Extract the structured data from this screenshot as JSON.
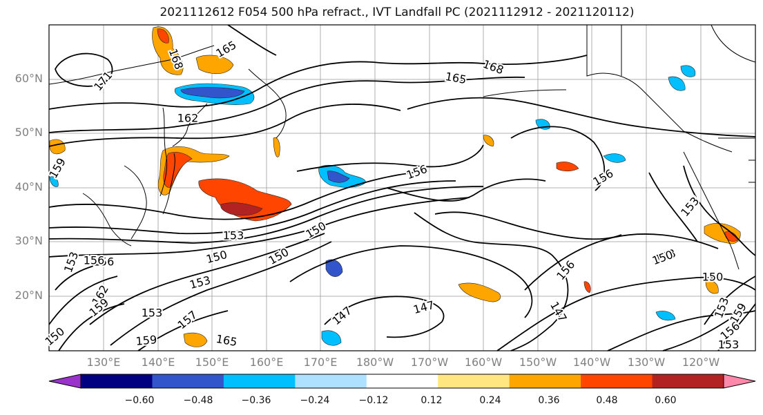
{
  "title": "2021112612 F054 500 hPa refract., IVT Landfall PC (2021112912 - 2021120112)",
  "lat_labels": [
    "60°N",
    "50°N",
    "40°N",
    "30°N",
    "20°N"
  ],
  "lon_labels": [
    "130°E",
    "140°E",
    "150°E",
    "160°E",
    "170°E",
    "180°W",
    "170°W",
    "160°W",
    "150°W",
    "140°W",
    "130°W",
    "120°W"
  ],
  "colorbar": {
    "ticks": [
      "−0.60",
      "−0.48",
      "−0.36",
      "−0.24",
      "−0.12",
      "0.12",
      "0.24",
      "0.36",
      "0.48",
      "0.60"
    ],
    "colors": [
      "#9933cc",
      "#000080",
      "#3355cc",
      "#00bfff",
      "#aee0ff",
      "#ffffff",
      "#ffe680",
      "#ffa500",
      "#ff4500",
      "#b22222",
      "#ff88aa"
    ]
  },
  "contour_labels": [
    {
      "text": "165"
    },
    {
      "text": "168"
    },
    {
      "text": "171"
    },
    {
      "text": "168"
    },
    {
      "text": "165"
    },
    {
      "text": "162"
    },
    {
      "text": "159"
    },
    {
      "text": "156"
    },
    {
      "text": "156"
    },
    {
      "text": "153"
    },
    {
      "text": "150"
    },
    {
      "text": "153"
    },
    {
      "text": "150"
    },
    {
      "text": "156"
    },
    {
      "text": "150"
    },
    {
      "text": "153"
    },
    {
      "text": "162"
    },
    {
      "text": "159"
    },
    {
      "text": "153"
    },
    {
      "text": "153"
    },
    {
      "text": "150"
    },
    {
      "text": "159"
    },
    {
      "text": "157"
    },
    {
      "text": "165"
    },
    {
      "text": "147"
    },
    {
      "text": "147"
    },
    {
      "text": "156"
    },
    {
      "text": "147"
    },
    {
      "text": "153"
    },
    {
      "text": "150"
    },
    {
      "text": "150"
    },
    {
      "text": "153"
    },
    {
      "text": "159"
    },
    {
      "text": "156"
    },
    {
      "text": "153"
    },
    {
      "text": "153"
    },
    {
      "text": "156"
    }
  ]
}
